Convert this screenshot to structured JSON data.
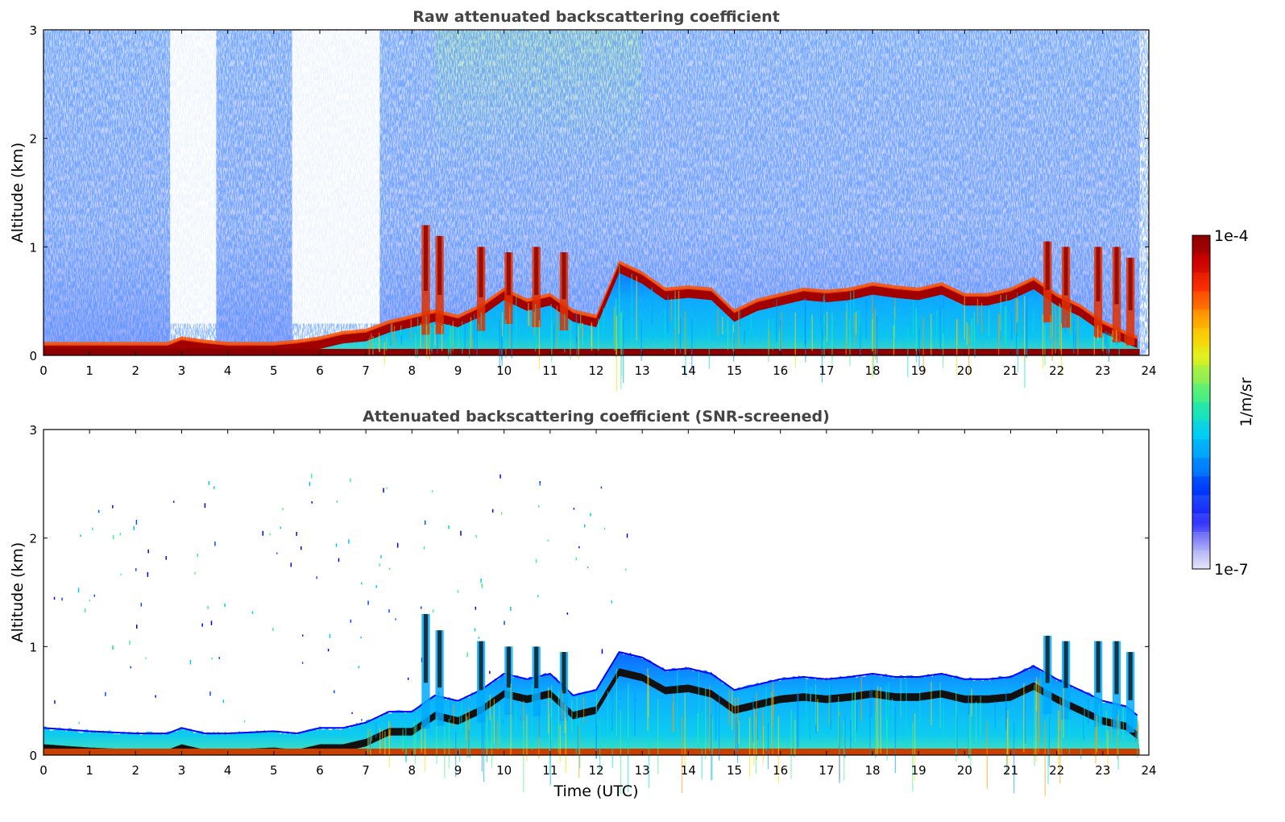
{
  "chart_data": [
    {
      "type": "heatmap",
      "title": "Raw attenuated backscattering coefficient",
      "xlabel": "",
      "ylabel": "Altitude (km)",
      "xlim": [
        0,
        24
      ],
      "ylim": [
        0,
        3
      ],
      "xticks": [
        "0",
        "1",
        "2",
        "3",
        "4",
        "5",
        "6",
        "7",
        "8",
        "9",
        "10",
        "11",
        "12",
        "13",
        "14",
        "15",
        "16",
        "17",
        "18",
        "19",
        "20",
        "21",
        "22",
        "23",
        "24"
      ],
      "yticks": [
        "0",
        "1",
        "2",
        "3"
      ],
      "layer_top_km": [
        [
          0,
          0.1
        ],
        [
          1,
          0.1
        ],
        [
          2,
          0.1
        ],
        [
          2.7,
          0.1
        ],
        [
          3,
          0.15
        ],
        [
          3.5,
          0.12
        ],
        [
          4,
          0.1
        ],
        [
          5,
          0.1
        ],
        [
          5.5,
          0.12
        ],
        [
          6,
          0.15
        ],
        [
          6.5,
          0.2
        ],
        [
          7,
          0.22
        ],
        [
          7.5,
          0.3
        ],
        [
          8,
          0.35
        ],
        [
          8.5,
          0.4
        ],
        [
          9,
          0.35
        ],
        [
          9.5,
          0.45
        ],
        [
          10,
          0.6
        ],
        [
          10.5,
          0.5
        ],
        [
          11,
          0.55
        ],
        [
          11.5,
          0.4
        ],
        [
          12,
          0.35
        ],
        [
          12.5,
          0.85
        ],
        [
          13,
          0.75
        ],
        [
          13.5,
          0.6
        ],
        [
          14,
          0.62
        ],
        [
          14.5,
          0.6
        ],
        [
          15,
          0.4
        ],
        [
          15.5,
          0.5
        ],
        [
          16,
          0.55
        ],
        [
          16.5,
          0.6
        ],
        [
          17,
          0.58
        ],
        [
          17.5,
          0.6
        ],
        [
          18,
          0.65
        ],
        [
          18.5,
          0.62
        ],
        [
          19,
          0.6
        ],
        [
          19.5,
          0.65
        ],
        [
          20,
          0.55
        ],
        [
          20.5,
          0.55
        ],
        [
          21,
          0.6
        ],
        [
          21.5,
          0.7
        ],
        [
          22,
          0.55
        ],
        [
          22.5,
          0.45
        ],
        [
          23,
          0.3
        ],
        [
          23.5,
          0.2
        ],
        [
          23.8,
          0.15
        ]
      ],
      "elevated_cloud_km": [
        [
          8.3,
          1.2
        ],
        [
          8.6,
          1.1
        ],
        [
          9.5,
          1.0
        ],
        [
          10.1,
          0.95
        ],
        [
          10.7,
          1.0
        ],
        [
          11.3,
          0.95
        ],
        [
          21.8,
          1.05
        ],
        [
          22.2,
          1.0
        ],
        [
          22.9,
          1.0
        ],
        [
          23.3,
          1.0
        ],
        [
          23.6,
          0.9
        ]
      ]
    },
    {
      "type": "heatmap",
      "title": "Attenuated backscattering coefficient (SNR-screened)",
      "xlabel": "Time (UTC)",
      "ylabel": "Altitude (km)",
      "xlim": [
        0,
        24
      ],
      "ylim": [
        0,
        3
      ],
      "xticks": [
        "0",
        "1",
        "2",
        "3",
        "4",
        "5",
        "6",
        "7",
        "8",
        "9",
        "10",
        "11",
        "12",
        "13",
        "14",
        "15",
        "16",
        "17",
        "18",
        "19",
        "20",
        "21",
        "22",
        "23",
        "24"
      ],
      "yticks": [
        "0",
        "1",
        "2",
        "3"
      ],
      "layer_top_km": [
        [
          0,
          0.25
        ],
        [
          1,
          0.22
        ],
        [
          2,
          0.2
        ],
        [
          2.7,
          0.2
        ],
        [
          3,
          0.25
        ],
        [
          3.5,
          0.2
        ],
        [
          4,
          0.2
        ],
        [
          5,
          0.22
        ],
        [
          5.5,
          0.2
        ],
        [
          6,
          0.25
        ],
        [
          6.5,
          0.25
        ],
        [
          7,
          0.3
        ],
        [
          7.5,
          0.4
        ],
        [
          8,
          0.4
        ],
        [
          8.5,
          0.55
        ],
        [
          9,
          0.5
        ],
        [
          9.5,
          0.6
        ],
        [
          10,
          0.75
        ],
        [
          10.5,
          0.7
        ],
        [
          11,
          0.75
        ],
        [
          11.5,
          0.55
        ],
        [
          12,
          0.6
        ],
        [
          12.5,
          0.95
        ],
        [
          13,
          0.9
        ],
        [
          13.5,
          0.78
        ],
        [
          14,
          0.8
        ],
        [
          14.5,
          0.75
        ],
        [
          15,
          0.6
        ],
        [
          15.5,
          0.65
        ],
        [
          16,
          0.7
        ],
        [
          16.5,
          0.72
        ],
        [
          17,
          0.7
        ],
        [
          17.5,
          0.72
        ],
        [
          18,
          0.75
        ],
        [
          18.5,
          0.72
        ],
        [
          19,
          0.72
        ],
        [
          19.5,
          0.75
        ],
        [
          20,
          0.7
        ],
        [
          20.5,
          0.7
        ],
        [
          21,
          0.72
        ],
        [
          21.5,
          0.82
        ],
        [
          22,
          0.7
        ],
        [
          22.5,
          0.6
        ],
        [
          23,
          0.5
        ],
        [
          23.5,
          0.45
        ],
        [
          23.8,
          0.35
        ]
      ],
      "elevated_cloud_km": [
        [
          8.3,
          1.3
        ],
        [
          8.6,
          1.15
        ],
        [
          9.5,
          1.05
        ],
        [
          10.1,
          1.0
        ],
        [
          10.7,
          1.0
        ],
        [
          11.3,
          0.95
        ],
        [
          21.8,
          1.1
        ],
        [
          22.2,
          1.05
        ],
        [
          22.9,
          1.05
        ],
        [
          23.3,
          1.05
        ],
        [
          23.6,
          0.95
        ]
      ]
    }
  ],
  "colorbar": {
    "max_label": "1e-4",
    "min_label": "1e-7",
    "unit_label": "1/m/sr",
    "scale": "log",
    "range": [
      1e-07,
      0.0001
    ],
    "colors": [
      "#e6e6fa",
      "#c8c8f8",
      "#9696f5",
      "#4b4bf5",
      "#0000ff",
      "#0050ff",
      "#0096ff",
      "#00c8ff",
      "#00e6c8",
      "#46f08c",
      "#96f050",
      "#dcf01e",
      "#ffdc00",
      "#ffaa00",
      "#ff6400",
      "#f02800",
      "#c80000",
      "#8b0000"
    ]
  }
}
